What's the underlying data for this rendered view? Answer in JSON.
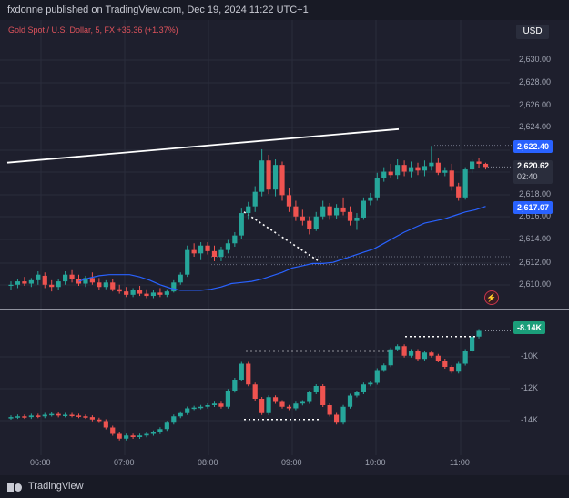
{
  "header": {
    "published_text": "fxdonne published on TradingView.com, Dec 19, 2024 11:22 UTC+1"
  },
  "legend": {
    "symbol_text": "Gold Spot / U.S. Dollar, 5, FX  +35.36 (+1.37%)"
  },
  "currency_button": "USD",
  "price_axis": {
    "ticks": [
      "2,630.00",
      "2,628.00",
      "2,626.00",
      "2,624.00",
      "2,618.00",
      "2,616.00",
      "2,614.00",
      "2,612.00",
      "2,610.00"
    ],
    "line_level_label": "2,622.40",
    "last_price_label": "2,620.62",
    "countdown_label": "02:40",
    "ma_label": "2,617.07"
  },
  "indicator_axis": {
    "ticks": [
      "-10K",
      "-12K",
      "-14K"
    ],
    "value_label": "-8.14K"
  },
  "time_axis": {
    "ticks": [
      "06:00",
      "07:00",
      "08:00",
      "09:00",
      "10:00",
      "11:00"
    ]
  },
  "footer": {
    "brand": "TradingView"
  },
  "icons": {
    "flash": "lightning-icon",
    "logo": "tradingview-logo-icon"
  },
  "colors": {
    "background": "#1e1f2d",
    "bull": "#26a69a",
    "bear": "#ef5350",
    "ma_line": "#2962ff",
    "level_line": "#2962ff",
    "trendline": "#ffffff",
    "last_price_badge": "#2a2d3c",
    "ma_badge": "#2962ff",
    "cvd_badge": "#1b9e7a"
  },
  "chart_data": {
    "type": "candlestick",
    "symbol": "Gold Spot / U.S. Dollar",
    "timeframe": "5",
    "x_ticks": [
      "06:00",
      "07:00",
      "08:00",
      "09:00",
      "10:00",
      "11:00"
    ],
    "y_ticks": [
      2610,
      2612,
      2614,
      2616,
      2618,
      2622,
      2624,
      2626,
      2628,
      2630
    ],
    "ylim": [
      2608.8,
      2631.2
    ],
    "last_price": 2620.62,
    "horizontal_level": 2622.4,
    "ma_value": 2617.07,
    "candles_ohlc": [
      [
        2610.0,
        2610.4,
        2609.6,
        2610.1
      ],
      [
        2610.1,
        2610.6,
        2609.8,
        2610.4
      ],
      [
        2610.4,
        2610.8,
        2610.0,
        2610.2
      ],
      [
        2610.2,
        2610.7,
        2609.9,
        2610.5
      ],
      [
        2610.5,
        2611.3,
        2610.1,
        2611.0
      ],
      [
        2610.9,
        2611.2,
        2609.8,
        2610.1
      ],
      [
        2610.1,
        2610.5,
        2609.5,
        2609.9
      ],
      [
        2609.9,
        2610.6,
        2609.6,
        2610.4
      ],
      [
        2610.4,
        2611.3,
        2610.1,
        2611.0
      ],
      [
        2611.0,
        2611.4,
        2610.3,
        2610.6
      ],
      [
        2610.6,
        2611.0,
        2610.0,
        2610.2
      ],
      [
        2610.2,
        2610.9,
        2609.9,
        2610.7
      ],
      [
        2610.7,
        2611.2,
        2610.1,
        2610.3
      ],
      [
        2610.3,
        2610.7,
        2609.6,
        2609.9
      ],
      [
        2609.9,
        2610.5,
        2609.7,
        2610.3
      ],
      [
        2610.3,
        2610.6,
        2609.5,
        2609.7
      ],
      [
        2609.7,
        2610.1,
        2609.3,
        2609.5
      ],
      [
        2609.5,
        2609.9,
        2609.0,
        2609.2
      ],
      [
        2609.2,
        2609.8,
        2609.0,
        2609.6
      ],
      [
        2609.6,
        2610.0,
        2609.1,
        2609.3
      ],
      [
        2609.3,
        2609.7,
        2608.9,
        2609.1
      ],
      [
        2609.1,
        2609.6,
        2608.9,
        2609.4
      ],
      [
        2609.4,
        2609.8,
        2609.0,
        2609.2
      ],
      [
        2609.2,
        2609.7,
        2609.0,
        2609.5
      ],
      [
        2609.5,
        2610.5,
        2609.4,
        2610.3
      ],
      [
        2610.3,
        2611.2,
        2610.1,
        2611.0
      ],
      [
        2611.0,
        2613.6,
        2610.8,
        2613.2
      ],
      [
        2613.2,
        2613.8,
        2612.6,
        2612.9
      ],
      [
        2612.9,
        2613.9,
        2612.3,
        2613.6
      ],
      [
        2613.6,
        2613.9,
        2612.8,
        2613.1
      ],
      [
        2613.1,
        2613.6,
        2612.2,
        2612.6
      ],
      [
        2612.6,
        2613.5,
        2612.2,
        2613.2
      ],
      [
        2613.2,
        2614.1,
        2612.9,
        2613.8
      ],
      [
        2613.8,
        2614.8,
        2613.5,
        2614.5
      ],
      [
        2614.5,
        2616.9,
        2614.2,
        2616.5
      ],
      [
        2616.5,
        2617.5,
        2615.9,
        2617.1
      ],
      [
        2617.1,
        2618.9,
        2616.6,
        2618.4
      ],
      [
        2618.4,
        2622.2,
        2618.0,
        2621.2
      ],
      [
        2621.2,
        2621.7,
        2618.2,
        2618.6
      ],
      [
        2618.6,
        2621.3,
        2618.0,
        2620.8
      ],
      [
        2620.8,
        2621.1,
        2617.6,
        2618.1
      ],
      [
        2618.1,
        2618.7,
        2616.6,
        2617.1
      ],
      [
        2617.1,
        2617.6,
        2615.8,
        2616.2
      ],
      [
        2616.2,
        2616.8,
        2615.4,
        2615.8
      ],
      [
        2615.8,
        2616.2,
        2614.6,
        2615.1
      ],
      [
        2615.1,
        2616.6,
        2614.9,
        2616.2
      ],
      [
        2616.2,
        2617.6,
        2615.9,
        2617.1
      ],
      [
        2617.1,
        2617.4,
        2615.9,
        2616.3
      ],
      [
        2616.3,
        2617.3,
        2616.0,
        2617.0
      ],
      [
        2617.0,
        2617.9,
        2616.3,
        2616.6
      ],
      [
        2616.6,
        2617.1,
        2615.4,
        2615.8
      ],
      [
        2615.8,
        2616.5,
        2615.0,
        2616.1
      ],
      [
        2616.1,
        2617.9,
        2615.9,
        2617.6
      ],
      [
        2617.6,
        2618.3,
        2617.2,
        2617.9
      ],
      [
        2617.9,
        2620.1,
        2617.6,
        2619.6
      ],
      [
        2619.6,
        2620.6,
        2619.3,
        2620.2
      ],
      [
        2620.2,
        2620.9,
        2619.6,
        2619.9
      ],
      [
        2619.9,
        2621.3,
        2619.5,
        2620.8
      ],
      [
        2620.8,
        2621.2,
        2619.8,
        2620.2
      ],
      [
        2620.2,
        2621.1,
        2619.7,
        2620.6
      ],
      [
        2620.6,
        2621.0,
        2619.9,
        2620.3
      ],
      [
        2620.3,
        2621.2,
        2619.8,
        2620.7
      ],
      [
        2620.7,
        2622.5,
        2620.3,
        2621.0
      ],
      [
        2621.0,
        2621.4,
        2619.9,
        2620.1
      ],
      [
        2620.1,
        2620.6,
        2619.8,
        2620.3
      ],
      [
        2620.3,
        2620.9,
        2618.5,
        2618.9
      ],
      [
        2618.9,
        2619.2,
        2617.6,
        2617.9
      ],
      [
        2617.9,
        2620.6,
        2617.7,
        2620.4
      ],
      [
        2620.4,
        2621.3,
        2620.1,
        2621.1
      ],
      [
        2621.1,
        2621.4,
        2620.5,
        2620.9
      ],
      [
        2620.9,
        2621.0,
        2620.4,
        2620.62
      ]
    ],
    "ma_series": [
      2610.4,
      2610.7,
      2610.9,
      2611.0,
      2611.0,
      2611.0,
      2610.8,
      2610.5,
      2610.1,
      2609.8,
      2609.6,
      2609.6,
      2609.6,
      2609.7,
      2609.9,
      2610.2,
      2610.3,
      2610.4,
      2610.6,
      2610.9,
      2611.2,
      2611.6,
      2611.8,
      2612.0,
      2612.0,
      2612.1,
      2612.4,
      2612.7,
      2613.0,
      2613.3,
      2613.8,
      2614.3,
      2614.8,
      2615.2,
      2615.6,
      2615.8,
      2616.0,
      2616.3,
      2616.6,
      2616.8,
      2617.1
    ],
    "cvd_ticks": [
      -10000,
      -12000,
      -14000
    ],
    "cvd_last": -8140
  }
}
